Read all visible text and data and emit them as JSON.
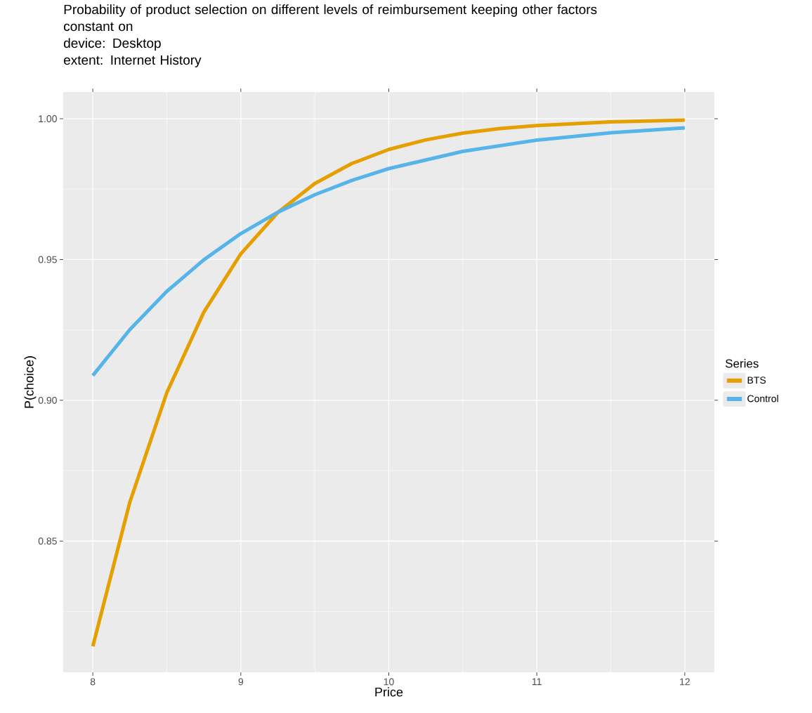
{
  "chart_data": {
    "type": "line",
    "title": "Probability of product selection on different levels of reimbursement keeping other factors constant on",
    "subtitle": "device: Desktop",
    "annotations": [
      "extent:  Internet History"
    ],
    "xlabel": "Price",
    "ylabel": "P(choice)",
    "legend_title": "Series",
    "series": [
      {
        "name": "BTS",
        "color": "#e69f00",
        "x": [
          8,
          8.25,
          8.5,
          8.75,
          9,
          9.25,
          9.5,
          9.75,
          10,
          10.25,
          10.5,
          10.75,
          11,
          11.5,
          12
        ],
        "values": [
          0.8126,
          0.8638,
          0.9027,
          0.9313,
          0.952,
          0.9667,
          0.977,
          0.9841,
          0.9891,
          0.9925,
          0.9949,
          0.9965,
          0.9976,
          0.9989,
          0.9995
        ]
      },
      {
        "name": "Control",
        "color": "#56b4e9",
        "x": [
          8,
          8.25,
          8.5,
          8.75,
          9,
          9.25,
          9.5,
          9.75,
          10,
          10.5,
          11,
          11.5,
          12
        ],
        "values": [
          0.9088,
          0.9251,
          0.9387,
          0.9499,
          0.9592,
          0.9668,
          0.973,
          0.9781,
          0.9823,
          0.9884,
          0.9924,
          0.995,
          0.9968
        ]
      }
    ],
    "xlim": [
      7.8,
      12.2
    ],
    "ylim": [
      0.8034,
      1.0095
    ],
    "xticks": [
      8,
      9,
      10,
      11,
      12
    ],
    "yticks": [
      0.85,
      {
        "value": 0.9,
        "label": "0.90"
      },
      0.95,
      {
        "value": 1,
        "label": "1.00"
      }
    ],
    "grid": true,
    "legend": "right",
    "marker": "none",
    "line_style": "solid"
  }
}
